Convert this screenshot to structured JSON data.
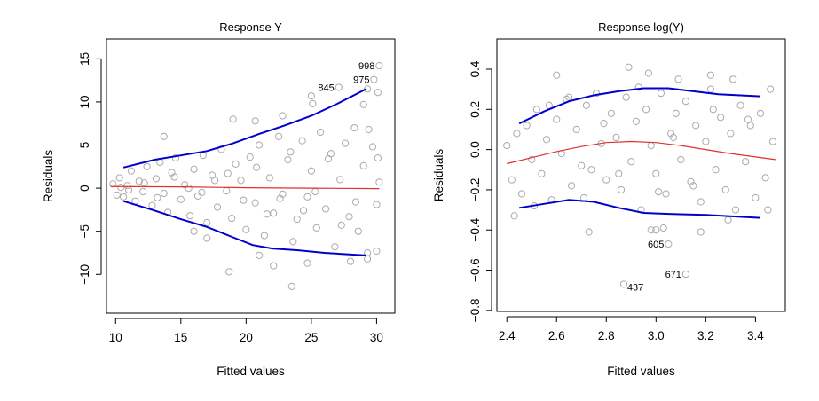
{
  "chart_data": [
    {
      "type": "scatter",
      "title": "Response Y",
      "xlabel": "Fitted values",
      "ylabel": "Residuals",
      "xlim": [
        9.3,
        31.4
      ],
      "ylim": [
        -14.5,
        17.3
      ],
      "xticks": [
        "10",
        "15",
        "20",
        "25",
        "30"
      ],
      "xtick_values": [
        10,
        15,
        20,
        25,
        30
      ],
      "yticks": [
        "−10",
        "−5",
        "0",
        "5",
        "10",
        "15"
      ],
      "ytick_values": [
        -10,
        -5,
        0,
        5,
        10,
        15
      ],
      "points": {
        "x": [
          9.8,
          10.1,
          10.3,
          10.6,
          10.9,
          11.2,
          11.5,
          11.8,
          12.1,
          12.4,
          12.8,
          13.1,
          13.4,
          13.7,
          14.0,
          14.3,
          14.6,
          15.0,
          15.3,
          15.7,
          16.0,
          16.3,
          16.7,
          17.0,
          17.4,
          17.8,
          18.1,
          18.5,
          18.9,
          19.2,
          19.6,
          20.0,
          20.3,
          20.7,
          21.0,
          21.4,
          21.8,
          22.1,
          22.5,
          22.8,
          23.2,
          23.6,
          23.9,
          24.3,
          24.7,
          25.0,
          25.4,
          25.7,
          26.1,
          26.5,
          26.8,
          27.2,
          27.6,
          27.9,
          28.3,
          28.6,
          29.0,
          29.3,
          29.7,
          30.0,
          30.2,
          10.4,
          11.0,
          12.2,
          13.2,
          14.5,
          15.6,
          16.6,
          17.6,
          18.6,
          19.8,
          20.8,
          21.6,
          22.6,
          23.4,
          24.4,
          25.3,
          26.3,
          27.3,
          28.4,
          29.4,
          30.1,
          13.7,
          16.0,
          17.0,
          18.7,
          19.0,
          20.7,
          22.1,
          22.8,
          23.5,
          24.7,
          25.0,
          25.1,
          28.0,
          29.0,
          29.3,
          29.3,
          30.0,
          30.1,
          21.0
        ],
        "y": [
          0.5,
          -0.8,
          1.2,
          -1.0,
          0.3,
          2.0,
          -1.5,
          0.8,
          -0.4,
          2.5,
          -2.0,
          1.1,
          3.0,
          -0.6,
          -2.8,
          1.8,
          3.5,
          -1.3,
          0.4,
          -3.2,
          2.2,
          -0.9,
          3.8,
          -4.0,
          1.5,
          -2.2,
          4.5,
          -0.3,
          -3.5,
          2.8,
          0.9,
          -4.8,
          3.6,
          -1.7,
          5.0,
          -5.5,
          1.2,
          -2.9,
          6.0,
          -0.7,
          3.3,
          -6.2,
          -3.6,
          5.5,
          -1.0,
          2.0,
          -4.6,
          6.5,
          -2.4,
          4.0,
          -6.8,
          1.0,
          5.2,
          -3.3,
          7.0,
          -5.0,
          2.6,
          -7.5,
          4.8,
          -1.9,
          0.7,
          0.1,
          -0.2,
          0.6,
          -1.1,
          1.3,
          0.0,
          -0.5,
          0.9,
          1.7,
          -1.4,
          2.4,
          -3.0,
          -1.2,
          4.2,
          -2.6,
          -0.4,
          3.4,
          -4.3,
          -1.6,
          6.8,
          3.5,
          6.0,
          -5.0,
          -5.8,
          -9.7,
          8.0,
          7.8,
          -9.0,
          8.4,
          -11.4,
          -8.7,
          10.7,
          9.8,
          -8.5,
          9.7,
          11.5,
          -8.2,
          -7.3,
          11.1,
          -7.8
        ]
      },
      "labeled_points": [
        {
          "label": "998",
          "x": 30.2,
          "y": 14.2
        },
        {
          "label": "975",
          "x": 29.8,
          "y": 12.6
        },
        {
          "label": "845",
          "x": 27.1,
          "y": 11.7
        }
      ],
      "series": [
        {
          "name": "upper",
          "color": "#0000cc",
          "x": [
            10.6,
            13,
            15,
            17,
            19,
            21,
            23,
            25,
            27,
            29.2
          ],
          "y": [
            2.4,
            3.3,
            3.8,
            4.3,
            5.2,
            6.3,
            7.3,
            8.4,
            9.8,
            11.5
          ]
        },
        {
          "name": "lower",
          "color": "#0000cc",
          "x": [
            10.6,
            13,
            15,
            17,
            19,
            20.5,
            22,
            24,
            26,
            29.2
          ],
          "y": [
            -1.5,
            -2.6,
            -3.6,
            -4.5,
            -5.7,
            -6.6,
            -7.0,
            -7.2,
            -7.5,
            -7.8
          ]
        },
        {
          "name": "smooth",
          "color": "#e03030",
          "x": [
            9.6,
            15,
            20,
            25,
            30.2
          ],
          "y": [
            0.2,
            0.15,
            0.05,
            0.0,
            -0.05
          ]
        }
      ]
    },
    {
      "type": "scatter",
      "title": "Response log(Y)",
      "xlabel": "Fitted values",
      "ylabel": "Residuals",
      "xlim": [
        2.36,
        3.52
      ],
      "ylim": [
        -0.805,
        0.55
      ],
      "xticks": [
        "2.4",
        "2.6",
        "2.8",
        "3.0",
        "3.2",
        "3.4"
      ],
      "xtick_values": [
        2.4,
        2.6,
        2.8,
        3.0,
        3.2,
        3.4
      ],
      "yticks": [
        "−0.8",
        "−0.6",
        "−0.4",
        "−0.2",
        "0.0",
        "0.2",
        "0.4"
      ],
      "ytick_values": [
        -0.8,
        -0.6,
        -0.4,
        -0.2,
        0.0,
        0.2,
        0.4
      ],
      "points": {
        "x": [
          2.4,
          2.42,
          2.44,
          2.46,
          2.48,
          2.5,
          2.52,
          2.54,
          2.56,
          2.58,
          2.6,
          2.62,
          2.64,
          2.66,
          2.68,
          2.7,
          2.72,
          2.74,
          2.76,
          2.78,
          2.8,
          2.82,
          2.84,
          2.86,
          2.88,
          2.9,
          2.92,
          2.94,
          2.96,
          2.98,
          3.0,
          3.02,
          3.04,
          3.06,
          3.08,
          3.1,
          3.12,
          3.14,
          3.16,
          3.18,
          3.2,
          3.22,
          3.24,
          3.26,
          3.28,
          3.3,
          3.32,
          3.34,
          3.36,
          3.38,
          3.4,
          3.42,
          3.44,
          3.46,
          3.47,
          2.43,
          2.51,
          2.57,
          2.65,
          2.71,
          2.79,
          2.85,
          2.93,
          3.01,
          3.07,
          3.15,
          3.23,
          3.29,
          3.37,
          3.45,
          2.89,
          2.6,
          2.97,
          3.09,
          3.31,
          3.22,
          2.73,
          2.98,
          3.0,
          3.03,
          3.18
        ],
        "y": [
          0.02,
          -0.15,
          0.08,
          -0.22,
          0.12,
          -0.05,
          0.2,
          -0.12,
          0.05,
          -0.25,
          0.15,
          -0.02,
          0.25,
          -0.18,
          0.1,
          -0.08,
          0.22,
          -0.1,
          0.28,
          0.03,
          -0.15,
          0.18,
          0.06,
          -0.2,
          0.26,
          -0.06,
          0.14,
          -0.3,
          0.2,
          0.02,
          -0.12,
          0.28,
          -0.22,
          0.08,
          0.18,
          -0.05,
          0.24,
          -0.16,
          0.12,
          -0.26,
          0.04,
          0.3,
          -0.1,
          0.16,
          -0.2,
          0.08,
          -0.3,
          0.22,
          -0.06,
          0.12,
          -0.24,
          0.18,
          -0.14,
          0.3,
          0.04,
          -0.33,
          -0.28,
          0.22,
          0.26,
          -0.24,
          0.13,
          -0.12,
          0.31,
          -0.21,
          0.06,
          -0.18,
          0.2,
          -0.35,
          0.15,
          -0.3,
          0.41,
          0.37,
          0.38,
          0.35,
          0.35,
          0.37,
          -0.41,
          -0.4,
          -0.4,
          -0.39,
          -0.41
        ]
      },
      "labeled_points": [
        {
          "label": "605",
          "x": 3.05,
          "y": -0.47
        },
        {
          "label": "671",
          "x": 3.12,
          "y": -0.62
        },
        {
          "label": "437",
          "x": 2.87,
          "y": -0.67
        }
      ],
      "series": [
        {
          "name": "upper",
          "color": "#0000cc",
          "x": [
            2.45,
            2.55,
            2.65,
            2.75,
            2.85,
            2.95,
            3.05,
            3.15,
            3.25,
            3.42
          ],
          "y": [
            0.13,
            0.19,
            0.24,
            0.27,
            0.29,
            0.305,
            0.305,
            0.29,
            0.275,
            0.265
          ]
        },
        {
          "name": "lower",
          "color": "#0000cc",
          "x": [
            2.45,
            2.55,
            2.65,
            2.75,
            2.85,
            2.95,
            3.05,
            3.2,
            3.42
          ],
          "y": [
            -0.29,
            -0.27,
            -0.25,
            -0.26,
            -0.29,
            -0.315,
            -0.32,
            -0.325,
            -0.34
          ]
        },
        {
          "name": "smooth",
          "color": "#e03030",
          "x": [
            2.4,
            2.5,
            2.6,
            2.7,
            2.8,
            2.9,
            3.0,
            3.1,
            3.2,
            3.3,
            3.48
          ],
          "y": [
            -0.07,
            -0.04,
            -0.01,
            0.015,
            0.035,
            0.04,
            0.035,
            0.02,
            0.0,
            -0.02,
            -0.05
          ]
        }
      ]
    }
  ]
}
